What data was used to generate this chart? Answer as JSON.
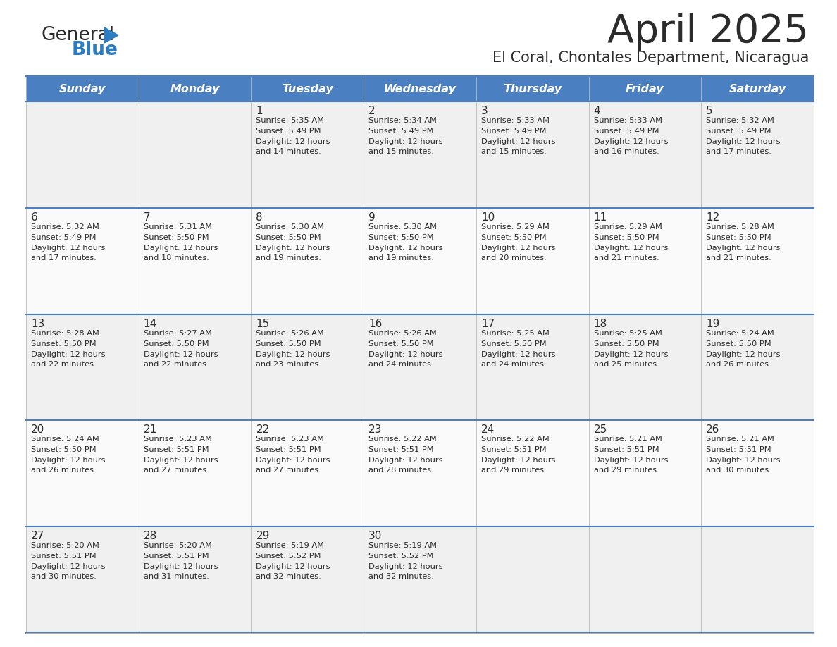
{
  "title": "April 2025",
  "subtitle": "El Coral, Chontales Department, Nicaragua",
  "days_of_week": [
    "Sunday",
    "Monday",
    "Tuesday",
    "Wednesday",
    "Thursday",
    "Friday",
    "Saturday"
  ],
  "header_bg": "#4A7FC1",
  "header_text_color": "#FFFFFF",
  "cell_bg_odd": "#F0F0F0",
  "cell_bg_even": "#FAFAFA",
  "cell_border_color": "#4A7FC1",
  "title_color": "#2B2B2B",
  "subtitle_color": "#2B2B2B",
  "text_color": "#2B2B2B",
  "logo_general_color": "#2B2B2B",
  "logo_blue_color": "#2E7DC0",
  "logo_triangle_color": "#2E7DC0",
  "calendar_data": [
    [
      {
        "day": null,
        "sunrise": null,
        "sunset": null,
        "daylight": null
      },
      {
        "day": null,
        "sunrise": null,
        "sunset": null,
        "daylight": null
      },
      {
        "day": 1,
        "sunrise": "5:35 AM",
        "sunset": "5:49 PM",
        "daylight": "12 hours and 14 minutes."
      },
      {
        "day": 2,
        "sunrise": "5:34 AM",
        "sunset": "5:49 PM",
        "daylight": "12 hours and 15 minutes."
      },
      {
        "day": 3,
        "sunrise": "5:33 AM",
        "sunset": "5:49 PM",
        "daylight": "12 hours and 15 minutes."
      },
      {
        "day": 4,
        "sunrise": "5:33 AM",
        "sunset": "5:49 PM",
        "daylight": "12 hours and 16 minutes."
      },
      {
        "day": 5,
        "sunrise": "5:32 AM",
        "sunset": "5:49 PM",
        "daylight": "12 hours and 17 minutes."
      }
    ],
    [
      {
        "day": 6,
        "sunrise": "5:32 AM",
        "sunset": "5:49 PM",
        "daylight": "12 hours and 17 minutes."
      },
      {
        "day": 7,
        "sunrise": "5:31 AM",
        "sunset": "5:50 PM",
        "daylight": "12 hours and 18 minutes."
      },
      {
        "day": 8,
        "sunrise": "5:30 AM",
        "sunset": "5:50 PM",
        "daylight": "12 hours and 19 minutes."
      },
      {
        "day": 9,
        "sunrise": "5:30 AM",
        "sunset": "5:50 PM",
        "daylight": "12 hours and 19 minutes."
      },
      {
        "day": 10,
        "sunrise": "5:29 AM",
        "sunset": "5:50 PM",
        "daylight": "12 hours and 20 minutes."
      },
      {
        "day": 11,
        "sunrise": "5:29 AM",
        "sunset": "5:50 PM",
        "daylight": "12 hours and 21 minutes."
      },
      {
        "day": 12,
        "sunrise": "5:28 AM",
        "sunset": "5:50 PM",
        "daylight": "12 hours and 21 minutes."
      }
    ],
    [
      {
        "day": 13,
        "sunrise": "5:28 AM",
        "sunset": "5:50 PM",
        "daylight": "12 hours and 22 minutes."
      },
      {
        "day": 14,
        "sunrise": "5:27 AM",
        "sunset": "5:50 PM",
        "daylight": "12 hours and 22 minutes."
      },
      {
        "day": 15,
        "sunrise": "5:26 AM",
        "sunset": "5:50 PM",
        "daylight": "12 hours and 23 minutes."
      },
      {
        "day": 16,
        "sunrise": "5:26 AM",
        "sunset": "5:50 PM",
        "daylight": "12 hours and 24 minutes."
      },
      {
        "day": 17,
        "sunrise": "5:25 AM",
        "sunset": "5:50 PM",
        "daylight": "12 hours and 24 minutes."
      },
      {
        "day": 18,
        "sunrise": "5:25 AM",
        "sunset": "5:50 PM",
        "daylight": "12 hours and 25 minutes."
      },
      {
        "day": 19,
        "sunrise": "5:24 AM",
        "sunset": "5:50 PM",
        "daylight": "12 hours and 26 minutes."
      }
    ],
    [
      {
        "day": 20,
        "sunrise": "5:24 AM",
        "sunset": "5:50 PM",
        "daylight": "12 hours and 26 minutes."
      },
      {
        "day": 21,
        "sunrise": "5:23 AM",
        "sunset": "5:51 PM",
        "daylight": "12 hours and 27 minutes."
      },
      {
        "day": 22,
        "sunrise": "5:23 AM",
        "sunset": "5:51 PM",
        "daylight": "12 hours and 27 minutes."
      },
      {
        "day": 23,
        "sunrise": "5:22 AM",
        "sunset": "5:51 PM",
        "daylight": "12 hours and 28 minutes."
      },
      {
        "day": 24,
        "sunrise": "5:22 AM",
        "sunset": "5:51 PM",
        "daylight": "12 hours and 29 minutes."
      },
      {
        "day": 25,
        "sunrise": "5:21 AM",
        "sunset": "5:51 PM",
        "daylight": "12 hours and 29 minutes."
      },
      {
        "day": 26,
        "sunrise": "5:21 AM",
        "sunset": "5:51 PM",
        "daylight": "12 hours and 30 minutes."
      }
    ],
    [
      {
        "day": 27,
        "sunrise": "5:20 AM",
        "sunset": "5:51 PM",
        "daylight": "12 hours and 30 minutes."
      },
      {
        "day": 28,
        "sunrise": "5:20 AM",
        "sunset": "5:51 PM",
        "daylight": "12 hours and 31 minutes."
      },
      {
        "day": 29,
        "sunrise": "5:19 AM",
        "sunset": "5:52 PM",
        "daylight": "12 hours and 32 minutes."
      },
      {
        "day": 30,
        "sunrise": "5:19 AM",
        "sunset": "5:52 PM",
        "daylight": "12 hours and 32 minutes."
      },
      {
        "day": null,
        "sunrise": null,
        "sunset": null,
        "daylight": null
      },
      {
        "day": null,
        "sunrise": null,
        "sunset": null,
        "daylight": null
      },
      {
        "day": null,
        "sunrise": null,
        "sunset": null,
        "daylight": null
      }
    ]
  ]
}
